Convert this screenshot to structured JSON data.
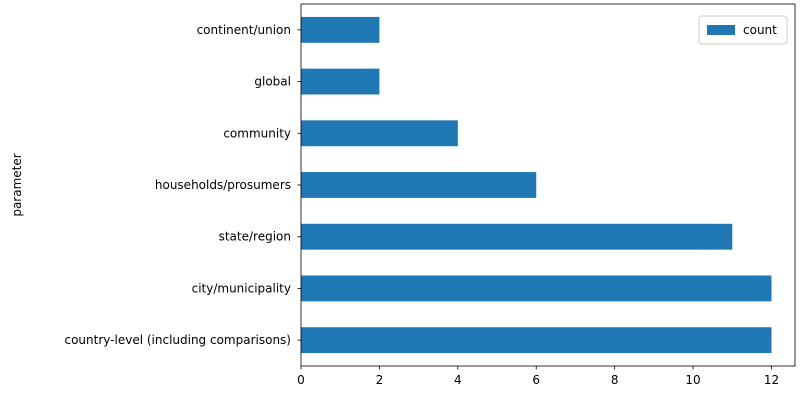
{
  "chart_data": {
    "type": "bar",
    "orientation": "horizontal",
    "categories": [
      "country-level (including comparisons)",
      "city/municipality",
      "state/region",
      "households/prosumers",
      "community",
      "global",
      "continent/union"
    ],
    "series": [
      {
        "name": "count",
        "values": [
          12,
          12,
          11,
          6,
          4,
          2,
          2
        ],
        "color": "#1f77b4"
      }
    ],
    "ylabel": "parameter",
    "xlabel": "",
    "xlim": [
      0,
      12.6
    ],
    "xticks": [
      0,
      2,
      4,
      6,
      8,
      10,
      12
    ],
    "grid": false,
    "legend": {
      "placement": "top-right",
      "entries": [
        "count"
      ]
    }
  }
}
